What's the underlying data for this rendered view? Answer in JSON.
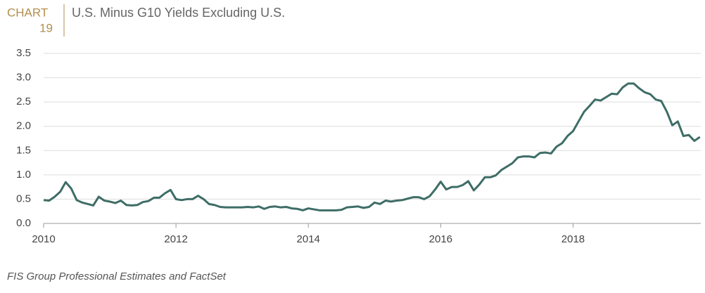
{
  "chart_data": {
    "type": "line",
    "chart_label": "CHART",
    "chart_number": "19",
    "title": "U.S. Minus G10 Yields Excluding U.S.",
    "source": "FIS Group Professional Estimates and FactSet",
    "x": [
      2010,
      2010.083,
      2010.167,
      2010.25,
      2010.333,
      2010.417,
      2010.5,
      2010.583,
      2010.667,
      2010.75,
      2010.833,
      2010.917,
      2011,
      2011.083,
      2011.167,
      2011.25,
      2011.333,
      2011.417,
      2011.5,
      2011.583,
      2011.667,
      2011.75,
      2011.833,
      2011.917,
      2012,
      2012.083,
      2012.167,
      2012.25,
      2012.333,
      2012.417,
      2012.5,
      2012.583,
      2012.667,
      2012.75,
      2012.833,
      2012.917,
      2013,
      2013.083,
      2013.167,
      2013.25,
      2013.333,
      2013.417,
      2013.5,
      2013.583,
      2013.667,
      2013.75,
      2013.833,
      2013.917,
      2014,
      2014.083,
      2014.167,
      2014.25,
      2014.333,
      2014.417,
      2014.5,
      2014.583,
      2014.667,
      2014.75,
      2014.833,
      2014.917,
      2015,
      2015.083,
      2015.167,
      2015.25,
      2015.333,
      2015.417,
      2015.5,
      2015.583,
      2015.667,
      2015.75,
      2015.833,
      2015.917,
      2016,
      2016.083,
      2016.167,
      2016.25,
      2016.333,
      2016.417,
      2016.5,
      2016.583,
      2016.667,
      2016.75,
      2016.833,
      2016.917,
      2017,
      2017.083,
      2017.167,
      2017.25,
      2017.333,
      2017.417,
      2017.5,
      2017.583,
      2017.667,
      2017.75,
      2017.833,
      2017.917,
      2018,
      2018.083,
      2018.167,
      2018.25,
      2018.333,
      2018.417,
      2018.5,
      2018.583,
      2018.667,
      2018.75,
      2018.833,
      2018.917,
      2019,
      2019.083,
      2019.167,
      2019.25,
      2019.333,
      2019.417,
      2019.5,
      2019.583,
      2019.667,
      2019.75,
      2019.833,
      2019.917
    ],
    "series": [
      {
        "name": "U.S. Minus G10 Yields Excluding U.S.",
        "color": "#3e6d66",
        "values": [
          0.48,
          0.47,
          0.55,
          0.65,
          0.85,
          0.72,
          0.48,
          0.43,
          0.4,
          0.37,
          0.55,
          0.47,
          0.45,
          0.42,
          0.47,
          0.38,
          0.37,
          0.38,
          0.44,
          0.46,
          0.53,
          0.53,
          0.62,
          0.69,
          0.5,
          0.48,
          0.5,
          0.5,
          0.57,
          0.5,
          0.4,
          0.38,
          0.34,
          0.33,
          0.33,
          0.33,
          0.33,
          0.34,
          0.33,
          0.35,
          0.3,
          0.34,
          0.35,
          0.33,
          0.34,
          0.31,
          0.3,
          0.27,
          0.31,
          0.29,
          0.27,
          0.27,
          0.27,
          0.27,
          0.28,
          0.33,
          0.34,
          0.35,
          0.32,
          0.34,
          0.43,
          0.4,
          0.47,
          0.45,
          0.47,
          0.48,
          0.51,
          0.54,
          0.54,
          0.5,
          0.56,
          0.7,
          0.86,
          0.7,
          0.75,
          0.75,
          0.79,
          0.87,
          0.68,
          0.8,
          0.95,
          0.95,
          0.99,
          1.1,
          1.17,
          1.24,
          1.36,
          1.38,
          1.38,
          1.36,
          1.45,
          1.46,
          1.44,
          1.58,
          1.65,
          1.8,
          1.9,
          2.1,
          2.3,
          2.42,
          2.55,
          2.53,
          2.6,
          2.67,
          2.66,
          2.8,
          2.88,
          2.88,
          2.78,
          2.7,
          2.66,
          2.55,
          2.52,
          2.3,
          2.02,
          2.1,
          1.8,
          1.82,
          1.7,
          1.78
        ]
      }
    ],
    "xlim": [
      2010,
      2019.93
    ],
    "xticks": [
      2010,
      2012,
      2014,
      2016,
      2018
    ],
    "ylim": [
      0,
      3.5
    ],
    "yticks": [
      {
        "value": 0,
        "label": "0.0"
      },
      0.5,
      {
        "value": 1,
        "label": "1.0"
      },
      1.5,
      {
        "value": 2,
        "label": "2.0"
      },
      2.5,
      {
        "value": 3,
        "label": "3.0"
      },
      3.5
    ],
    "grid": true
  }
}
